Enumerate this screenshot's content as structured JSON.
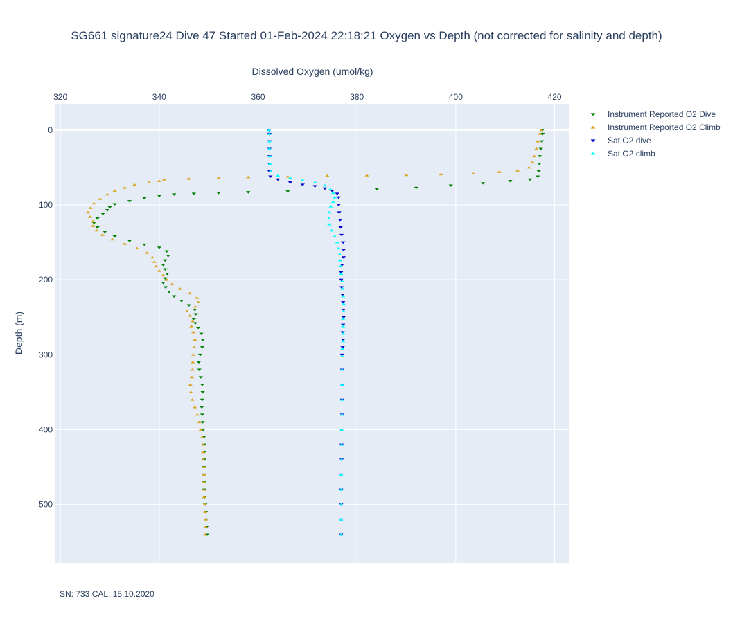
{
  "chart_data": {
    "type": "scatter",
    "title": "SG661 signature24 Dive 47 Started 01-Feb-2024 22:18:21  Oxygen vs Depth (not corrected for salinity and depth)",
    "xlabel": "Dissolved Oxygen (umol/kg)",
    "ylabel": "Depth (m)",
    "x_axis_side": "top",
    "y_reversed": true,
    "xlim": [
      319,
      423
    ],
    "ylim": [
      578,
      -35
    ],
    "xticks": [
      320,
      340,
      360,
      380,
      400,
      420
    ],
    "yticks": [
      0,
      100,
      200,
      300,
      400,
      500
    ],
    "grid": true,
    "legend_position": "top-right",
    "series": [
      {
        "name": "Instrument Reported O2 Dive",
        "marker": "triangle-down",
        "color": "#008000",
        "points": [
          [
            417.5,
            0
          ],
          [
            417.6,
            5
          ],
          [
            417.4,
            15
          ],
          [
            417.2,
            25
          ],
          [
            417.0,
            35
          ],
          [
            416.9,
            45
          ],
          [
            416.8,
            55
          ],
          [
            416.6,
            62
          ],
          [
            415,
            66
          ],
          [
            411,
            68
          ],
          [
            405.5,
            71
          ],
          [
            399,
            74
          ],
          [
            392,
            77
          ],
          [
            384,
            79
          ],
          [
            375,
            81
          ],
          [
            366,
            82
          ],
          [
            358,
            83
          ],
          [
            352,
            84
          ],
          [
            347,
            85
          ],
          [
            343,
            86
          ],
          [
            340,
            88
          ],
          [
            337,
            91
          ],
          [
            334,
            95
          ],
          [
            331,
            99
          ],
          [
            330,
            103
          ],
          [
            329.5,
            107
          ],
          [
            328.6,
            112
          ],
          [
            327.5,
            118
          ],
          [
            326.8,
            124
          ],
          [
            327.5,
            130
          ],
          [
            329,
            136
          ],
          [
            331,
            142
          ],
          [
            334,
            148
          ],
          [
            337,
            153
          ],
          [
            340,
            157
          ],
          [
            341.5,
            162
          ],
          [
            341.8,
            168
          ],
          [
            341.2,
            174
          ],
          [
            340.8,
            180
          ],
          [
            341.2,
            186
          ],
          [
            341.6,
            192
          ],
          [
            341.2,
            198
          ],
          [
            340.8,
            204
          ],
          [
            341.3,
            210
          ],
          [
            342,
            216
          ],
          [
            343,
            222
          ],
          [
            344.5,
            228
          ],
          [
            346,
            234
          ],
          [
            347.2,
            240
          ],
          [
            347.4,
            246
          ],
          [
            347,
            252
          ],
          [
            347.3,
            258
          ],
          [
            347.9,
            264
          ],
          [
            348.5,
            272
          ],
          [
            348.8,
            280
          ],
          [
            348.7,
            290
          ],
          [
            348.3,
            300
          ],
          [
            348,
            310
          ],
          [
            348.1,
            320
          ],
          [
            348.4,
            330
          ],
          [
            348.7,
            340
          ],
          [
            348.8,
            350
          ],
          [
            348.7,
            360
          ],
          [
            348.6,
            370
          ],
          [
            348.7,
            380
          ],
          [
            348.8,
            390
          ],
          [
            348.9,
            400
          ],
          [
            349.0,
            410
          ],
          [
            349.1,
            420
          ],
          [
            349.1,
            430
          ],
          [
            349.1,
            440
          ],
          [
            349.1,
            450
          ],
          [
            349.1,
            460
          ],
          [
            349.1,
            470
          ],
          [
            349.1,
            480
          ],
          [
            349.2,
            490
          ],
          [
            349.3,
            500
          ],
          [
            349.4,
            510
          ],
          [
            349.5,
            520
          ],
          [
            349.6,
            530
          ],
          [
            349.7,
            540
          ]
        ]
      },
      {
        "name": "Instrument Reported O2 Climb",
        "marker": "triangle-up",
        "color": "#daa520",
        "points": [
          [
            417.3,
            0
          ],
          [
            417.0,
            5
          ],
          [
            416.6,
            15
          ],
          [
            416.3,
            25
          ],
          [
            415.9,
            35
          ],
          [
            415.5,
            43
          ],
          [
            414.8,
            50
          ],
          [
            412.5,
            54
          ],
          [
            408.8,
            56
          ],
          [
            403.5,
            58
          ],
          [
            397,
            59
          ],
          [
            390,
            60
          ],
          [
            382,
            60.5
          ],
          [
            374,
            61
          ],
          [
            366,
            62
          ],
          [
            358,
            63
          ],
          [
            352,
            64
          ],
          [
            346,
            65
          ],
          [
            341,
            66
          ],
          [
            340,
            68
          ],
          [
            338,
            70
          ],
          [
            335,
            73
          ],
          [
            333,
            77
          ],
          [
            331,
            81
          ],
          [
            329.5,
            86
          ],
          [
            328,
            92
          ],
          [
            326.8,
            98
          ],
          [
            326.1,
            104
          ],
          [
            325.6,
            110
          ],
          [
            326.0,
            116
          ],
          [
            326.6,
            122
          ],
          [
            326.6,
            128
          ],
          [
            327.3,
            134
          ],
          [
            328.5,
            140
          ],
          [
            330.5,
            146
          ],
          [
            333,
            152
          ],
          [
            335.5,
            158
          ],
          [
            337.5,
            164
          ],
          [
            338.6,
            170
          ],
          [
            339.0,
            176
          ],
          [
            339.4,
            182
          ],
          [
            340.0,
            188
          ],
          [
            340.8,
            194
          ],
          [
            341.5,
            200
          ],
          [
            342.6,
            206
          ],
          [
            344.2,
            212
          ],
          [
            346.2,
            218
          ],
          [
            347.6,
            224
          ],
          [
            347.9,
            230
          ],
          [
            347.3,
            236
          ],
          [
            345.6,
            242
          ],
          [
            346.2,
            248
          ],
          [
            346.7,
            255
          ],
          [
            346.5,
            262
          ],
          [
            346.9,
            270
          ],
          [
            347.2,
            280
          ],
          [
            347.1,
            290
          ],
          [
            346.9,
            300
          ],
          [
            346.8,
            310
          ],
          [
            346.7,
            320
          ],
          [
            346.6,
            330
          ],
          [
            346.3,
            340
          ],
          [
            346.4,
            350
          ],
          [
            346.7,
            360
          ],
          [
            347.2,
            370
          ],
          [
            347.7,
            380
          ],
          [
            348.1,
            390
          ],
          [
            348.4,
            400
          ],
          [
            348.7,
            410
          ],
          [
            348.9,
            420
          ],
          [
            348.9,
            430
          ],
          [
            348.9,
            440
          ],
          [
            349.0,
            450
          ],
          [
            349.0,
            460
          ],
          [
            349.0,
            470
          ],
          [
            349.0,
            480
          ],
          [
            349.1,
            490
          ],
          [
            349.2,
            500
          ],
          [
            349.3,
            510
          ],
          [
            349.4,
            520
          ],
          [
            349.4,
            530
          ],
          [
            349.3,
            540
          ]
        ]
      },
      {
        "name": "Sat O2 dive",
        "marker": "triangle-down",
        "color": "#0000cd",
        "points": [
          [
            362.2,
            0
          ],
          [
            362.3,
            5
          ],
          [
            362.3,
            15
          ],
          [
            362.3,
            25
          ],
          [
            362.3,
            35
          ],
          [
            362.3,
            45
          ],
          [
            362.3,
            55
          ],
          [
            362.5,
            62
          ],
          [
            364,
            66
          ],
          [
            366.5,
            70
          ],
          [
            369,
            73
          ],
          [
            371.5,
            75
          ],
          [
            373.5,
            78
          ],
          [
            375,
            81
          ],
          [
            376,
            85
          ],
          [
            376.3,
            90
          ],
          [
            376.3,
            100
          ],
          [
            376.4,
            110
          ],
          [
            376.6,
            120
          ],
          [
            376.7,
            130
          ],
          [
            376.9,
            140
          ],
          [
            377.2,
            150
          ],
          [
            377.3,
            160
          ],
          [
            377.3,
            170
          ],
          [
            377.0,
            180
          ],
          [
            376.8,
            190
          ],
          [
            376.8,
            200
          ],
          [
            376.9,
            210
          ],
          [
            377.1,
            220
          ],
          [
            377.2,
            230
          ],
          [
            377.3,
            240
          ],
          [
            377.3,
            250
          ],
          [
            377.2,
            260
          ],
          [
            377.1,
            270
          ],
          [
            377.2,
            280
          ],
          [
            377.1,
            290
          ],
          [
            377.0,
            300
          ],
          [
            377.0,
            320
          ],
          [
            377.0,
            340
          ],
          [
            377.0,
            360
          ],
          [
            377.0,
            380
          ],
          [
            376.9,
            400
          ],
          [
            376.9,
            420
          ],
          [
            376.9,
            440
          ],
          [
            376.8,
            460
          ],
          [
            376.8,
            480
          ],
          [
            376.8,
            500
          ],
          [
            376.8,
            520
          ],
          [
            376.8,
            540
          ]
        ]
      },
      {
        "name": "Sat O2 climb",
        "marker": "triangle-up",
        "color": "#00ffff",
        "points": [
          [
            362.2,
            0
          ],
          [
            362.3,
            5
          ],
          [
            362.3,
            15
          ],
          [
            362.3,
            25
          ],
          [
            362.4,
            35
          ],
          [
            362.4,
            45
          ],
          [
            362.5,
            55
          ],
          [
            364,
            61
          ],
          [
            366.5,
            64
          ],
          [
            369,
            67
          ],
          [
            371.5,
            70
          ],
          [
            373.5,
            74
          ],
          [
            374.6,
            79
          ],
          [
            375.2,
            84
          ],
          [
            375.5,
            90
          ],
          [
            375.2,
            96
          ],
          [
            374.7,
            102
          ],
          [
            374.4,
            110
          ],
          [
            374.3,
            118
          ],
          [
            374.4,
            126
          ],
          [
            374.9,
            134
          ],
          [
            375.5,
            142
          ],
          [
            376.0,
            150
          ],
          [
            376.3,
            158
          ],
          [
            376.5,
            166
          ],
          [
            376.6,
            174
          ],
          [
            376.7,
            182
          ],
          [
            376.8,
            192
          ],
          [
            377.0,
            202
          ],
          [
            377.1,
            212
          ],
          [
            377.2,
            222
          ],
          [
            377.3,
            232
          ],
          [
            377.3,
            242
          ],
          [
            377.2,
            252
          ],
          [
            377.2,
            262
          ],
          [
            377.2,
            272
          ],
          [
            377.2,
            282
          ],
          [
            377.1,
            292
          ],
          [
            377.0,
            302
          ],
          [
            377.0,
            320
          ],
          [
            377.0,
            340
          ],
          [
            377.0,
            360
          ],
          [
            377.0,
            380
          ],
          [
            376.9,
            400
          ],
          [
            376.9,
            420
          ],
          [
            376.9,
            440
          ],
          [
            376.8,
            460
          ],
          [
            376.8,
            480
          ],
          [
            376.8,
            500
          ],
          [
            376.8,
            520
          ],
          [
            376.8,
            540
          ]
        ]
      }
    ],
    "annotation": "SN: 733  CAL: 15.10.2020"
  },
  "colors": {
    "plot_background": "#e5ecf6",
    "grid": "#ffffff",
    "text": "#2a3f5f"
  }
}
